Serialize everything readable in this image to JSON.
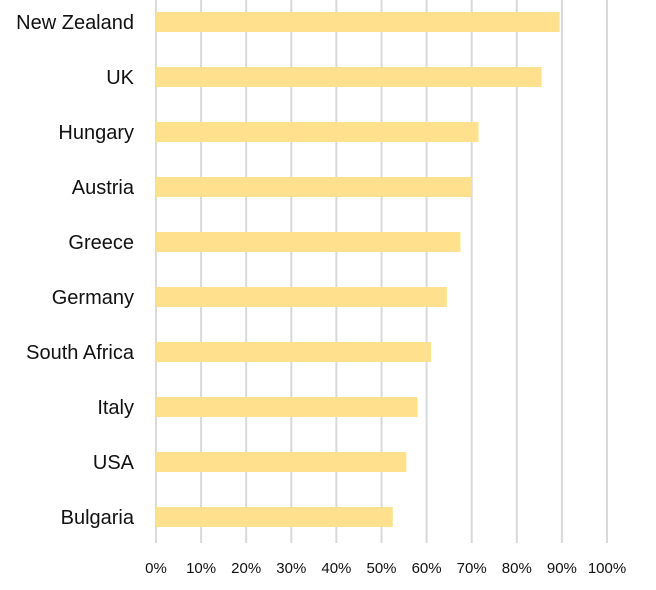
{
  "chart_data": {
    "type": "bar",
    "orientation": "horizontal",
    "categories": [
      "New Zealand",
      "UK",
      "Hungary",
      "Austria",
      "Greece",
      "Germany",
      "South Africa",
      "Italy",
      "USA",
      "Bulgaria"
    ],
    "values": [
      0.895,
      0.855,
      0.715,
      0.7,
      0.675,
      0.645,
      0.61,
      0.58,
      0.555,
      0.525
    ],
    "xlim": [
      0,
      1
    ],
    "xticks": [
      "0%",
      "10%",
      "20%",
      "30%",
      "40%",
      "50%",
      "60%",
      "70%",
      "80%",
      "90%",
      "100%"
    ],
    "title": "",
    "xlabel": "",
    "ylabel": "",
    "grid": "vertical",
    "legend": "none",
    "bar_color": "#ffe08c",
    "grid_color": "#d9d9d9"
  }
}
